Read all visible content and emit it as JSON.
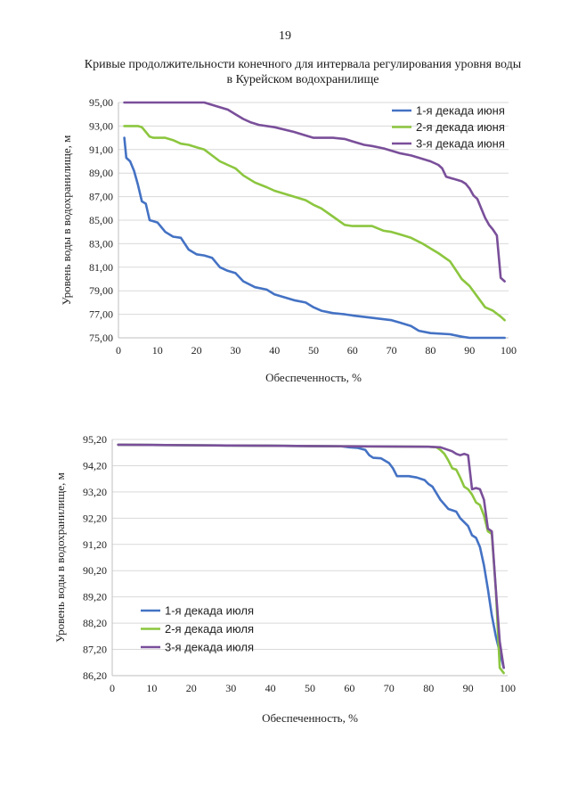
{
  "page": {
    "number": "19"
  },
  "chart_data": [
    {
      "type": "line",
      "title": "Кривые продолжительности конечного для интервала регулирования уровня воды в Курейском водохранилище",
      "title_lines": [
        "Кривые продолжительности конечного для интервала регулирования уровня воды",
        "в Курейском водохранилище"
      ],
      "xlabel": "Обеспеченность, %",
      "ylabel": "Уровень воды в водохранилище, м",
      "xlim": [
        0,
        100
      ],
      "ylim": [
        75,
        95
      ],
      "xticks": [
        0,
        10,
        20,
        30,
        40,
        50,
        60,
        70,
        80,
        90,
        100
      ],
      "yticks": [
        75,
        77,
        79,
        81,
        83,
        85,
        87,
        89,
        91,
        93,
        95
      ],
      "ytick_labels": [
        "75,00",
        "77,00",
        "79,00",
        "81,00",
        "83,00",
        "85,00",
        "87,00",
        "89,00",
        "91,00",
        "93,00",
        "95,00"
      ],
      "legend_position": "top-right",
      "grid": true,
      "series": [
        {
          "name": "1-я декада июня",
          "color": "#4472c4",
          "x": [
            1.5,
            2,
            3,
            4,
            5,
            6,
            7,
            8,
            9,
            10,
            12,
            14,
            16,
            18,
            20,
            22,
            24,
            26,
            28,
            30,
            32,
            35,
            38,
            40,
            45,
            48,
            50,
            52,
            55,
            58,
            60,
            65,
            70,
            72,
            75,
            77,
            80,
            85,
            88,
            90,
            95,
            99
          ],
          "y": [
            92,
            90.3,
            90,
            89.2,
            88,
            86.6,
            86.4,
            85,
            84.9,
            84.8,
            84,
            83.6,
            83.5,
            82.5,
            82.1,
            82,
            81.8,
            81,
            80.7,
            80.5,
            79.8,
            79.3,
            79.1,
            78.7,
            78.2,
            78,
            77.6,
            77.3,
            77.1,
            77,
            76.9,
            76.7,
            76.5,
            76.3,
            76,
            75.6,
            75.4,
            75.3,
            75.1,
            75,
            75,
            75
          ]
        },
        {
          "name": "2-я декада июня",
          "color": "#8cc63f",
          "x": [
            1.5,
            3,
            5,
            6,
            7,
            8,
            9,
            10,
            12,
            14,
            16,
            18,
            20,
            22,
            24,
            26,
            28,
            30,
            32,
            35,
            38,
            40,
            45,
            48,
            50,
            52,
            55,
            58,
            60,
            65,
            68,
            70,
            72,
            75,
            78,
            80,
            82,
            85,
            87,
            88,
            90,
            92,
            94,
            96,
            98,
            99
          ],
          "y": [
            93,
            93,
            93,
            92.9,
            92.5,
            92.1,
            92,
            92,
            92,
            91.8,
            91.5,
            91.4,
            91.2,
            91,
            90.5,
            90,
            89.7,
            89.4,
            88.8,
            88.2,
            87.8,
            87.5,
            87,
            86.7,
            86.3,
            86,
            85.3,
            84.6,
            84.5,
            84.5,
            84.1,
            84,
            83.8,
            83.5,
            83,
            82.6,
            82.2,
            81.5,
            80.5,
            80,
            79.4,
            78.5,
            77.6,
            77.3,
            76.8,
            76.5
          ]
        },
        {
          "name": "3-я декада июня",
          "color": "#7a4f9a",
          "x": [
            1.5,
            5,
            10,
            15,
            20,
            22,
            25,
            28,
            30,
            32,
            34,
            36,
            40,
            45,
            48,
            50,
            55,
            58,
            60,
            63,
            65,
            68,
            70,
            72,
            75,
            77,
            80,
            82,
            83,
            84,
            86,
            88,
            89,
            90,
            91,
            92,
            93,
            94,
            95,
            96,
            97,
            98,
            99
          ],
          "y": [
            95,
            95,
            95,
            95,
            95,
            95,
            94.7,
            94.4,
            94,
            93.6,
            93.3,
            93.1,
            92.9,
            92.5,
            92.2,
            92,
            92,
            91.9,
            91.7,
            91.4,
            91.3,
            91.1,
            90.9,
            90.7,
            90.5,
            90.3,
            90,
            89.7,
            89.4,
            88.7,
            88.5,
            88.3,
            88.1,
            87.7,
            87.1,
            86.8,
            86,
            85.2,
            84.6,
            84.2,
            83.7,
            80.1,
            79.8
          ]
        }
      ]
    },
    {
      "type": "line",
      "title": "",
      "xlabel": "Обеспеченность, %",
      "ylabel": "Уровень воды в водохранилище, м",
      "xlim": [
        0,
        100
      ],
      "ylim": [
        86.2,
        95.2
      ],
      "xticks": [
        0,
        10,
        20,
        30,
        40,
        50,
        60,
        70,
        80,
        90,
        100
      ],
      "yticks": [
        86.2,
        87.2,
        88.2,
        89.2,
        90.2,
        91.2,
        92.2,
        93.2,
        94.2,
        95.2
      ],
      "ytick_labels": [
        "86,20",
        "87,20",
        "88,20",
        "89,20",
        "90,20",
        "91,20",
        "92,20",
        "93,20",
        "94,20",
        "95,20"
      ],
      "legend_position": "center-left",
      "grid": true,
      "series": [
        {
          "name": "1-я декада июля",
          "color": "#4472c4",
          "x": [
            1.5,
            10,
            20,
            30,
            40,
            50,
            58,
            60,
            62,
            64,
            65,
            66,
            68,
            70,
            71,
            72,
            75,
            77,
            79,
            80,
            81,
            82,
            83,
            85,
            87,
            88,
            89,
            90,
            91,
            92,
            93,
            94,
            95,
            96,
            97,
            98,
            99
          ],
          "y": [
            95,
            94.99,
            94.98,
            94.97,
            94.96,
            94.95,
            94.94,
            94.9,
            94.88,
            94.8,
            94.6,
            94.5,
            94.48,
            94.3,
            94.1,
            93.8,
            93.8,
            93.75,
            93.65,
            93.5,
            93.4,
            93.15,
            92.9,
            92.55,
            92.45,
            92.2,
            92.05,
            91.9,
            91.55,
            91.45,
            91.1,
            90.4,
            89.5,
            88.5,
            87.7,
            87.1,
            86.5
          ]
        },
        {
          "name": "2-я декада июля",
          "color": "#8cc63f",
          "x": [
            1.5,
            10,
            20,
            30,
            40,
            50,
            60,
            70,
            80,
            82,
            83,
            84,
            85,
            86,
            87,
            88,
            89,
            90,
            91,
            92,
            93,
            94,
            95,
            96,
            97,
            98,
            99
          ],
          "y": [
            95,
            94.99,
            94.98,
            94.97,
            94.96,
            94.95,
            94.94,
            94.93,
            94.92,
            94.9,
            94.8,
            94.65,
            94.4,
            94.1,
            94.05,
            93.75,
            93.4,
            93.3,
            93.1,
            92.8,
            92.7,
            92.3,
            91.7,
            91.6,
            89.5,
            86.5,
            86.3
          ]
        },
        {
          "name": "3-я декада июля",
          "color": "#7a4f9a",
          "x": [
            1.5,
            10,
            20,
            30,
            40,
            50,
            60,
            70,
            80,
            83,
            84,
            85,
            86,
            87,
            88,
            89,
            90,
            91,
            92,
            93,
            94,
            95,
            96,
            97,
            98,
            99
          ],
          "y": [
            95,
            94.99,
            94.98,
            94.97,
            94.96,
            94.95,
            94.94,
            94.93,
            94.92,
            94.9,
            94.85,
            94.8,
            94.75,
            94.65,
            94.6,
            94.65,
            94.6,
            93.3,
            93.35,
            93.3,
            92.9,
            91.8,
            91.7,
            89.5,
            87.5,
            86.5
          ]
        }
      ]
    }
  ]
}
